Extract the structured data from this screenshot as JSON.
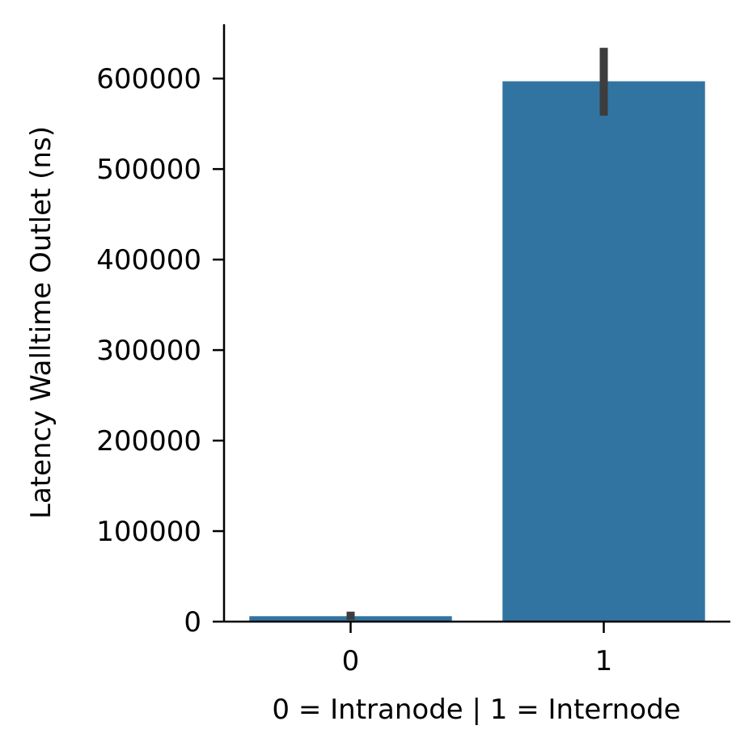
{
  "chart_data": {
    "type": "bar",
    "title": "",
    "xlabel": "0 = Intranode | 1 = Internode",
    "ylabel": "Latency Walltime Outlet (ns)",
    "categories": [
      "0",
      "1"
    ],
    "values": [
      6000,
      597000
    ],
    "error_bars": [
      {
        "low": 2000,
        "high": 11000
      },
      {
        "low": 559000,
        "high": 634000
      }
    ],
    "ylim": [
      0,
      660000
    ],
    "yticks": [
      0,
      100000,
      200000,
      300000,
      400000,
      500000,
      600000
    ],
    "ytick_labels": [
      "0",
      "100000",
      "200000",
      "300000",
      "400000",
      "500000",
      "600000"
    ],
    "grid": false,
    "legend": "none",
    "colors": {
      "bar": "#3274a1",
      "error_bar": "#3d3d3d",
      "axis": "#000000"
    }
  }
}
